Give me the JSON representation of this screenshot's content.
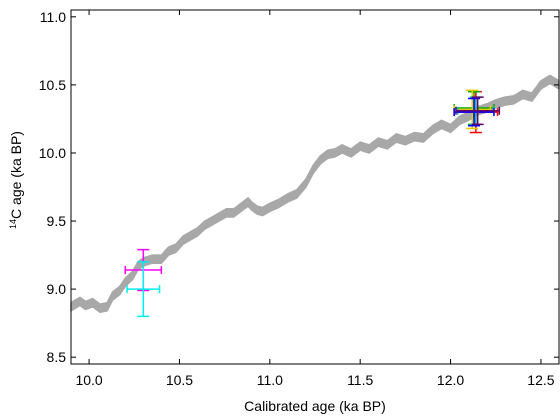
{
  "chart_data": {
    "type": "scatter",
    "xlabel": "Calibrated age (ka BP)",
    "ylabel_prefix": "14",
    "ylabel_main": "C age (ka BP)",
    "xlim": [
      9.9,
      12.6
    ],
    "ylim": [
      8.45,
      11.05
    ],
    "xticks": [
      10.0,
      10.5,
      11.0,
      11.5,
      12.0,
      12.5
    ],
    "yticks": [
      8.5,
      9.0,
      9.5,
      10.0,
      10.5,
      11.0
    ],
    "xtick_labels": [
      "10.0",
      "10.5",
      "11.0",
      "11.5",
      "12.0",
      "12.5"
    ],
    "ytick_labels": [
      "8.5",
      "9.0",
      "9.5",
      "10.0",
      "10.5",
      "11.0"
    ],
    "grid": false,
    "band": {
      "color": "#a8a8a8",
      "half_width": 0.03,
      "x": [
        9.9,
        9.95,
        9.98,
        10.02,
        10.06,
        10.1,
        10.13,
        10.17,
        10.2,
        10.24,
        10.27,
        10.3,
        10.35,
        10.4,
        10.44,
        10.48,
        10.52,
        10.56,
        10.6,
        10.64,
        10.68,
        10.72,
        10.76,
        10.8,
        10.84,
        10.88,
        10.9,
        10.93,
        10.96,
        11.0,
        11.05,
        11.1,
        11.15,
        11.2,
        11.24,
        11.28,
        11.32,
        11.36,
        11.4,
        11.45,
        11.5,
        11.55,
        11.6,
        11.65,
        11.7,
        11.75,
        11.8,
        11.85,
        11.9,
        11.95,
        12.0,
        12.05,
        12.1,
        12.15,
        12.2,
        12.25,
        12.3,
        12.35,
        12.4,
        12.45,
        12.5,
        12.55,
        12.6
      ],
      "y": [
        8.87,
        8.91,
        8.88,
        8.9,
        8.86,
        8.87,
        8.95,
        8.99,
        9.05,
        9.1,
        9.17,
        9.2,
        9.22,
        9.22,
        9.28,
        9.3,
        9.36,
        9.39,
        9.42,
        9.47,
        9.5,
        9.53,
        9.56,
        9.56,
        9.6,
        9.64,
        9.61,
        9.58,
        9.57,
        9.6,
        9.63,
        9.67,
        9.7,
        9.78,
        9.88,
        9.95,
        9.99,
        10.0,
        10.03,
        10.0,
        10.05,
        10.03,
        10.08,
        10.06,
        10.11,
        10.09,
        10.12,
        10.11,
        10.17,
        10.21,
        10.18,
        10.24,
        10.27,
        10.31,
        10.33,
        10.36,
        10.38,
        10.39,
        10.43,
        10.41,
        10.5,
        10.54,
        10.5
      ]
    },
    "series": [
      {
        "color": "#ff00ff",
        "x": 10.3,
        "y": 9.14,
        "xerr": 0.1,
        "yerr": 0.15
      },
      {
        "color": "#00eeee",
        "x": 10.3,
        "y": 9.0,
        "xerr": 0.09,
        "yerr": 0.2
      },
      {
        "color": "#ff0000",
        "x": 12.14,
        "y": 10.3,
        "xerr": 0.12,
        "yerr": 0.15
      },
      {
        "color": "#00aa00",
        "x": 12.13,
        "y": 10.33,
        "xerr": 0.11,
        "yerr": 0.12
      },
      {
        "color": "#e6c800",
        "x": 12.12,
        "y": 10.32,
        "xerr": 0.1,
        "yerr": 0.14
      },
      {
        "color": "#00c8c8",
        "x": 12.14,
        "y": 10.31,
        "xerr": 0.1,
        "yerr": 0.1
      },
      {
        "color": "#0000ff",
        "x": 12.13,
        "y": 10.3,
        "xerr": 0.11,
        "yerr": 0.1
      },
      {
        "color": "#660066",
        "x": 12.15,
        "y": 10.31,
        "xerr": 0.12,
        "yerr": 0.1
      }
    ]
  }
}
